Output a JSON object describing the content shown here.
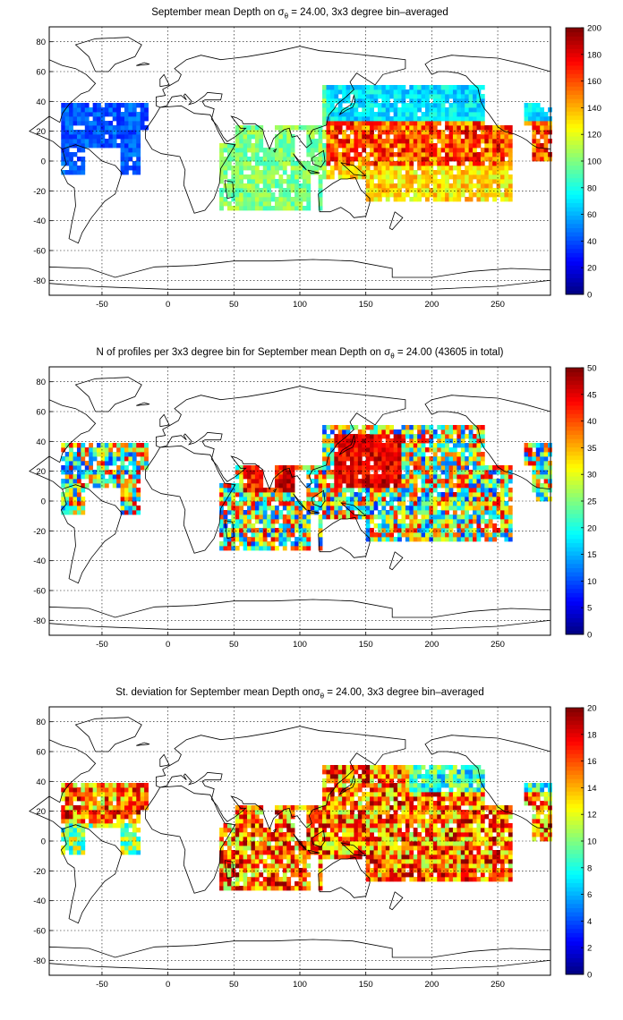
{
  "figure": {
    "panels": [
      {
        "id": "mean",
        "title": {
          "pre": "September mean Depth on σ",
          "sub": "θ",
          "post": " = 24.00, 3x3 degree bin–averaged"
        },
        "colorbar": {
          "ticks": [
            "0",
            "20",
            "40",
            "60",
            "80",
            "100",
            "120",
            "140",
            "160",
            "180",
            "200"
          ],
          "max": 200
        }
      },
      {
        "id": "count",
        "title": {
          "pre": "N of profiles per 3x3 degree bin for September mean Depth on σ",
          "sub": "θ",
          "post": " = 24.00 (43605 in total)"
        },
        "colorbar": {
          "ticks": [
            "0",
            "5",
            "10",
            "15",
            "20",
            "25",
            "30",
            "35",
            "40",
            "45",
            "50"
          ],
          "max": 50
        }
      },
      {
        "id": "std",
        "title": {
          "pre": "St. deviation for September mean Depth onσ",
          "sub": "θ",
          "post": " = 24.00, 3x3 degree bin–averaged"
        },
        "colorbar": {
          "ticks": [
            "0",
            "2",
            "4",
            "6",
            "8",
            "10",
            "12",
            "14",
            "16",
            "18",
            "20"
          ],
          "max": 20
        }
      }
    ]
  },
  "chart_data": [
    {
      "type": "heatmap",
      "title": "September mean Depth on σθ = 24.00, 3x3 degree bin–averaged",
      "x_ticks": [
        -50,
        0,
        50,
        100,
        150,
        200,
        250
      ],
      "y_ticks": [
        -80,
        -60,
        -40,
        -20,
        0,
        20,
        40,
        60,
        80
      ],
      "xlim": [
        -90,
        290
      ],
      "ylim": [
        -90,
        90
      ],
      "colorbar_range": [
        0,
        200
      ],
      "colormap": "jet",
      "grid": true,
      "regions": [
        {
          "lon": [
            -80,
            -50
          ],
          "lat": [
            10,
            40
          ],
          "value": 40
        },
        {
          "lon": [
            -50,
            -20
          ],
          "lat": [
            5,
            25
          ],
          "value": 35
        },
        {
          "lon": [
            40,
            110
          ],
          "lat": [
            -30,
            10
          ],
          "value": 100
        },
        {
          "lon": [
            120,
            230
          ],
          "lat": [
            10,
            40
          ],
          "value": 90
        },
        {
          "lon": [
            130,
            260
          ],
          "lat": [
            -5,
            25
          ],
          "value": 160
        },
        {
          "lon": [
            130,
            230
          ],
          "lat": [
            -25,
            -5
          ],
          "value": 140
        }
      ]
    },
    {
      "type": "heatmap",
      "title": "N of profiles per 3x3 degree bin for September mean Depth on σθ = 24.00 (43605 in total)",
      "x_ticks": [
        -50,
        0,
        50,
        100,
        150,
        200,
        250
      ],
      "y_ticks": [
        -80,
        -60,
        -40,
        -20,
        0,
        20,
        40,
        60,
        80
      ],
      "xlim": [
        -90,
        290
      ],
      "ylim": [
        -90,
        90
      ],
      "colorbar_range": [
        0,
        50
      ],
      "colormap": "jet",
      "grid": true,
      "total_profiles": 43605,
      "regions": [
        {
          "lon": [
            -80,
            -50
          ],
          "lat": [
            10,
            40
          ],
          "value": 20
        },
        {
          "lon": [
            40,
            110
          ],
          "lat": [
            -30,
            10
          ],
          "value": 18
        },
        {
          "lon": [
            55,
            95
          ],
          "lat": [
            5,
            25
          ],
          "value": 48
        },
        {
          "lon": [
            125,
            170
          ],
          "lat": [
            10,
            45
          ],
          "value": 48
        },
        {
          "lon": [
            150,
            260
          ],
          "lat": [
            -25,
            40
          ],
          "value": 25
        }
      ]
    },
    {
      "type": "heatmap",
      "title": "St. deviation for September mean Depth onσθ = 24.00, 3x3 degree bin–averaged",
      "x_ticks": [
        -50,
        0,
        50,
        100,
        150,
        200,
        250
      ],
      "y_ticks": [
        -80,
        -60,
        -40,
        -20,
        0,
        20,
        40,
        60,
        80
      ],
      "xlim": [
        -90,
        290
      ],
      "ylim": [
        -90,
        90
      ],
      "colorbar_range": [
        0,
        20
      ],
      "colormap": "jet",
      "grid": true,
      "regions": [
        {
          "lon": [
            -80,
            -50
          ],
          "lat": [
            15,
            40
          ],
          "value": 17
        },
        {
          "lon": [
            40,
            110
          ],
          "lat": [
            -30,
            10
          ],
          "value": 16
        },
        {
          "lon": [
            120,
            250
          ],
          "lat": [
            -25,
            35
          ],
          "value": 18
        },
        {
          "lon": [
            180,
            260
          ],
          "lat": [
            30,
            55
          ],
          "value": 8
        }
      ]
    }
  ]
}
